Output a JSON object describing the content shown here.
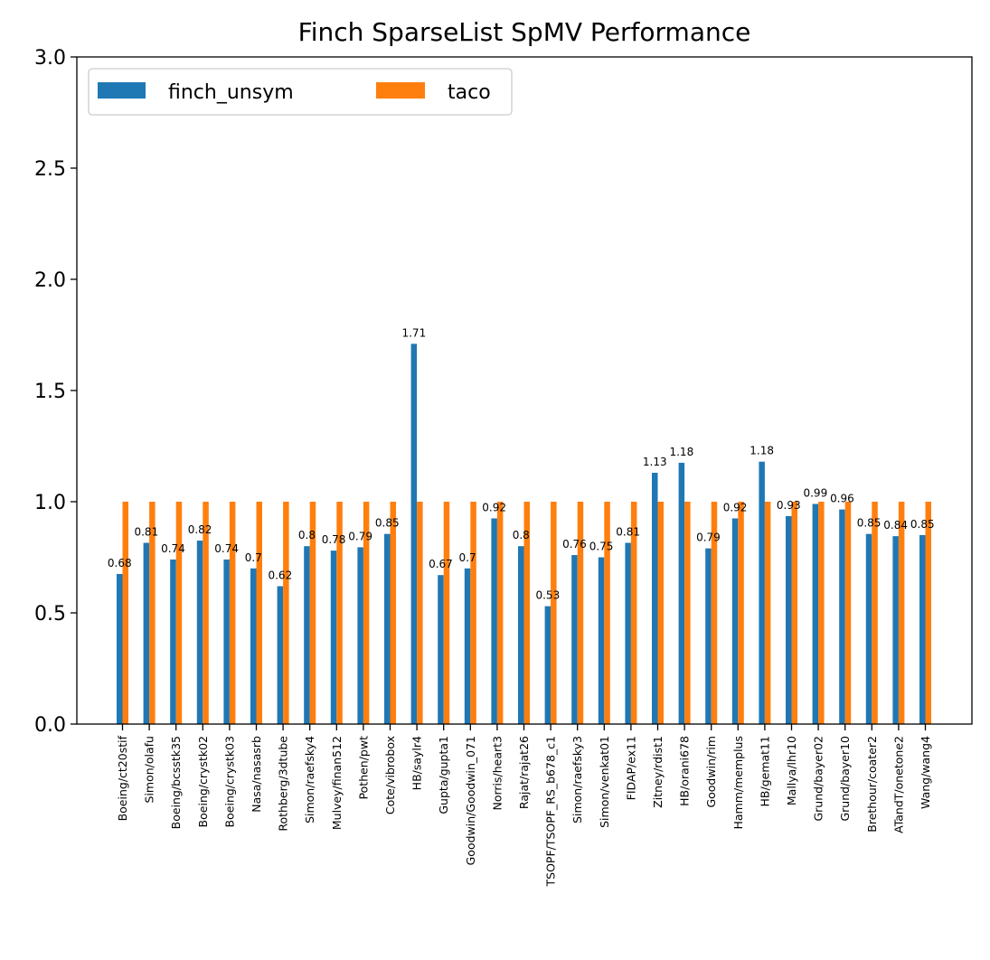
{
  "chart_data": {
    "type": "bar",
    "title": "Finch SparseList SpMV Performance",
    "xlabel": "",
    "ylabel": "",
    "ylim": [
      0,
      3.0
    ],
    "yticks": [
      0.0,
      0.5,
      1.0,
      1.5,
      2.0,
      2.5,
      3.0
    ],
    "ytick_labels": [
      "0.0",
      "0.5",
      "1.0",
      "1.5",
      "2.0",
      "2.5",
      "3.0"
    ],
    "legend_position": "top-left",
    "grid": false,
    "categories": [
      "Boeing/ct20stif",
      "Simon/olafu",
      "Boeing/bcsstk35",
      "Boeing/crystk02",
      "Boeing/crystk03",
      "Nasa/nasasrb",
      "Rothberg/3dtube",
      "Simon/raefsky4",
      "Mulvey/finan512",
      "Pothen/pwt",
      "Cote/vibrobox",
      "HB/saylr4",
      "Gupta/gupta1",
      "Goodwin/Goodwin_071",
      "Norris/heart3",
      "Rajat/rajat26",
      "TSOPF/TSOPF_RS_b678_c1",
      "Simon/raefsky3",
      "Simon/venkat01",
      "FIDAP/ex11",
      "Zitney/rdist1",
      "HB/orani678",
      "Goodwin/rim",
      "Hamm/memplus",
      "HB/gemat11",
      "Mallya/lhr10",
      "Grund/bayer02",
      "Grund/bayer10",
      "Brethour/coater2",
      "ATandT/onetone2",
      "Wang/wang4"
    ],
    "series": [
      {
        "name": "finch_unsym",
        "color": "#1f77b4",
        "values": [
          0.675,
          0.815,
          0.74,
          0.825,
          0.74,
          0.7,
          0.62,
          0.8,
          0.78,
          0.795,
          0.855,
          1.71,
          0.67,
          0.7,
          0.925,
          0.8,
          0.53,
          0.76,
          0.75,
          0.815,
          1.13,
          1.175,
          0.79,
          0.925,
          1.18,
          0.935,
          0.99,
          0.965,
          0.855,
          0.845,
          0.85
        ],
        "labels": [
          "0.68",
          "0.81",
          "0.74",
          "0.82",
          "0.74",
          "0.7",
          "0.62",
          "0.8",
          "0.78",
          "0.79",
          "0.85",
          "1.71",
          "0.67",
          "0.7",
          "0.92",
          "0.8",
          "0.53",
          "0.76",
          "0.75",
          "0.81",
          "1.13",
          "1.18",
          "0.79",
          "0.92",
          "1.18",
          "0.93",
          "0.99",
          "0.96",
          "0.85",
          "0.84",
          "0.85"
        ]
      },
      {
        "name": "taco",
        "color": "#ff7f0e",
        "values": [
          1,
          1,
          1,
          1,
          1,
          1,
          1,
          1,
          1,
          1,
          1,
          1,
          1,
          1,
          1,
          1,
          1,
          1,
          1,
          1,
          1,
          1,
          1,
          1,
          1,
          1,
          1,
          1,
          1,
          1,
          1
        ]
      }
    ]
  }
}
